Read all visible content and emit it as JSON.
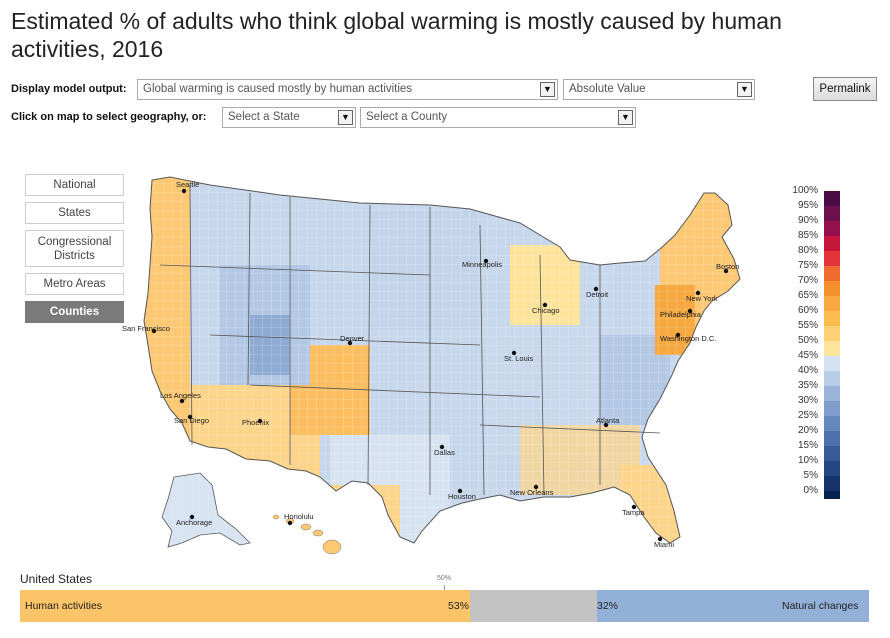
{
  "title": "Estimated % of adults who think global warming is mostly caused by human activities, 2016",
  "controls": {
    "display_label": "Display model output:",
    "model_output_value": "Global warming is caused mostly by human activities",
    "value_type": "Absolute Value",
    "permalink_label": "Permalink",
    "geo_label": "Click on map to select geography, or:",
    "state_select": "Select a State",
    "county_select": "Select a County"
  },
  "geography_buttons": [
    {
      "label": "National",
      "active": false
    },
    {
      "label": "States",
      "active": false
    },
    {
      "label": "Congressional Districts",
      "active": false
    },
    {
      "label": "Metro Areas",
      "active": false
    },
    {
      "label": "Counties",
      "active": true
    }
  ],
  "map": {
    "cities": [
      "Seattle",
      "San Francisco",
      "Los Angeles",
      "San Diego",
      "Phoenix",
      "Denver",
      "Minneapolis",
      "Chicago",
      "Detroit",
      "St. Louis",
      "Dallas",
      "Houston",
      "New Orleans",
      "Atlanta",
      "Tampa",
      "Miami",
      "Boston",
      "New York",
      "Philadelphia",
      "Washington D.C.",
      "Anchorage",
      "Honolulu"
    ]
  },
  "legend": {
    "labels": [
      "100%",
      "95%",
      "90%",
      "85%",
      "80%",
      "75%",
      "70%",
      "65%",
      "60%",
      "55%",
      "50%",
      "45%",
      "40%",
      "35%",
      "30%",
      "25%",
      "20%",
      "15%",
      "10%",
      "5%",
      "0%"
    ],
    "colors": [
      "#4a0c42",
      "#6e0f4e",
      "#94104f",
      "#c4173a",
      "#e2343a",
      "#ef6c2e",
      "#f5902e",
      "#f8a840",
      "#fbbd52",
      "#fcd274",
      "#fde39c",
      "#d5e2f1",
      "#b8cde6",
      "#9bb5da",
      "#7f9ecd",
      "#6487bd",
      "#4b70ab",
      "#365b98",
      "#244683",
      "#16336c",
      "#0b2150"
    ]
  },
  "summary": {
    "region": "United States",
    "tick_label": "50%",
    "human_label": "Human activities",
    "human_value": "53%",
    "natural_value": "32%",
    "natural_label": "Natural changes",
    "human_fraction": 0.53,
    "natural_fraction": 0.32,
    "colors": {
      "human": "#fcc468",
      "neither": "#c3c3c3",
      "natural": "#93b1d8"
    }
  }
}
